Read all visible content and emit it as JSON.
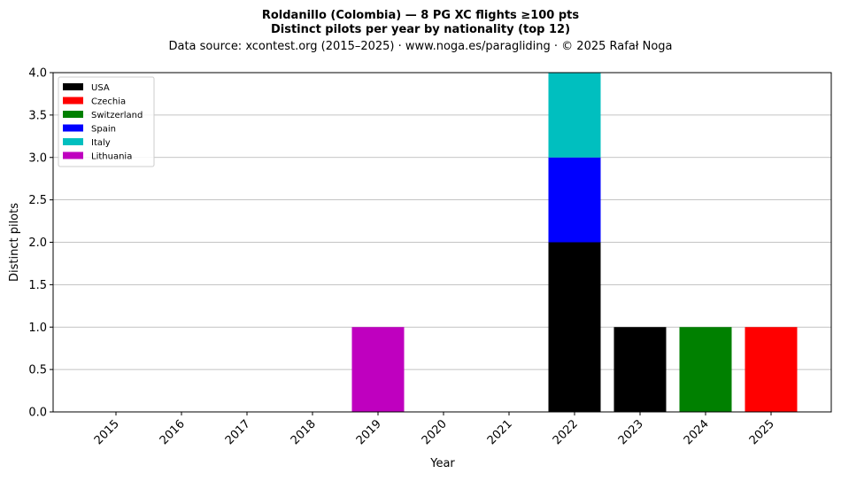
{
  "chart_data": {
    "type": "bar",
    "stacked": true,
    "title_line1": "Roldanillo (Colombia)  —  8 PG XC flights ≥100 pts",
    "title_line2": "Distinct pilots per year by nationality (top 12)",
    "subtitle": "Data source: xcontest.org (2015–2025)  ·  www.noga.es/paragliding  ·  © 2025 Rafał Noga",
    "xlabel": "Year",
    "ylabel": "Distinct pilots",
    "ylim": [
      0,
      4
    ],
    "yticks": [
      "0.0",
      "0.5",
      "1.0",
      "1.5",
      "2.0",
      "2.5",
      "3.0",
      "3.5",
      "4.0"
    ],
    "grid": "horizontal",
    "legend_position": "top-left",
    "categories": [
      "2015",
      "2016",
      "2017",
      "2018",
      "2019",
      "2020",
      "2021",
      "2022",
      "2023",
      "2024",
      "2025"
    ],
    "series": [
      {
        "name": "USA",
        "color": "#000000",
        "values": [
          0,
          0,
          0,
          0,
          0,
          0,
          0,
          2,
          1,
          0,
          0
        ]
      },
      {
        "name": "Czechia",
        "color": "#ff0000",
        "values": [
          0,
          0,
          0,
          0,
          0,
          0,
          0,
          0,
          0,
          0,
          1
        ]
      },
      {
        "name": "Switzerland",
        "color": "#008000",
        "values": [
          0,
          0,
          0,
          0,
          0,
          0,
          0,
          0,
          0,
          1,
          0
        ]
      },
      {
        "name": "Spain",
        "color": "#0000ff",
        "values": [
          0,
          0,
          0,
          0,
          0,
          0,
          0,
          1,
          0,
          0,
          0
        ]
      },
      {
        "name": "Italy",
        "color": "#00bfbf",
        "values": [
          0,
          0,
          0,
          0,
          0,
          0,
          0,
          1,
          0,
          0,
          0
        ]
      },
      {
        "name": "Lithuania",
        "color": "#bf00bf",
        "values": [
          0,
          0,
          0,
          0,
          1,
          0,
          0,
          0,
          0,
          0,
          0
        ]
      }
    ]
  }
}
